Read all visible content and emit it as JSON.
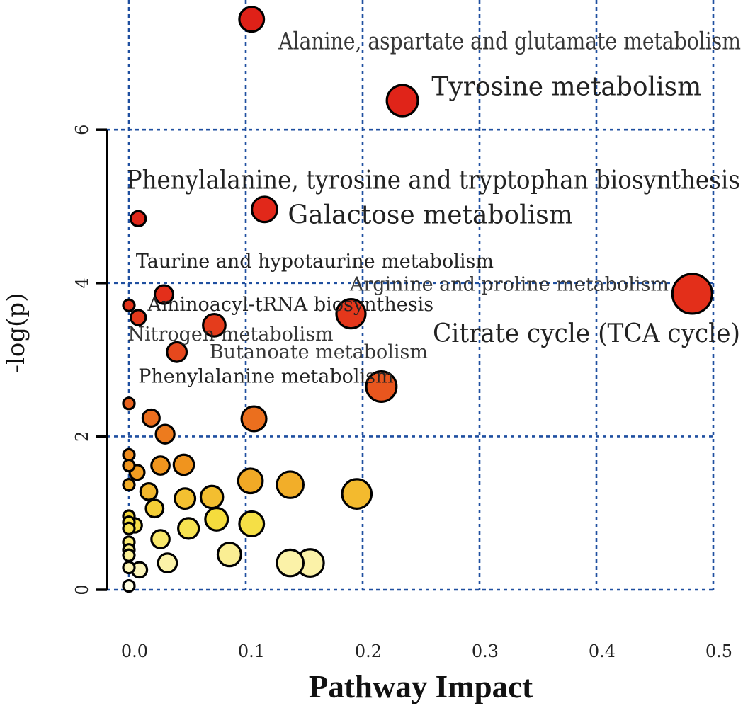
{
  "chart_data": {
    "type": "scatter",
    "title": "",
    "xlabel": "Pathway Impact",
    "ylabel": "-log(p)",
    "xlim": [
      0,
      0.5
    ],
    "ylim": [
      0,
      7.5
    ],
    "xticks": [
      0.0,
      0.1,
      0.2,
      0.3,
      0.4,
      0.5
    ],
    "xtick_labels": [
      "0.0",
      "0.1",
      "0.2",
      "0.3",
      "0.4",
      "0.5"
    ],
    "yticks": [
      0,
      2,
      4,
      6
    ],
    "ytick_labels": [
      "0",
      "2",
      "4",
      "6"
    ],
    "grid": true,
    "grid_style": "dotted-blue",
    "color_scale": "-log(p): white (low) to yellow to orange to red (high)",
    "points": [
      {
        "x": 0.105,
        "y": 7.44,
        "size": 0.105,
        "label": "Alanine, aspartate and glutamate metabolism"
      },
      {
        "x": 0.234,
        "y": 6.38,
        "size": 0.234,
        "label": "Tyrosine metabolism"
      },
      {
        "x": 0.116,
        "y": 4.96,
        "size": 0.116,
        "label": "Galactose metabolism"
      },
      {
        "x": 0.008,
        "y": 4.84,
        "size": 0.008,
        "label": "Phenylalanine, tyrosine and tryptophan biosynthesis"
      },
      {
        "x": 0.03,
        "y": 3.85,
        "size": 0.03,
        "label": "Taurine and hypotaurine metabolism"
      },
      {
        "x": 0.482,
        "y": 3.86,
        "size": 0.482,
        "label": "Citrate cycle (TCA cycle)"
      },
      {
        "x": 0.19,
        "y": 3.6,
        "size": 0.19,
        "label": "Arginine and proline metabolism"
      },
      {
        "x": 0.0,
        "y": 3.71,
        "size": 0.0,
        "label": ""
      },
      {
        "x": 0.008,
        "y": 3.55,
        "size": 0.008,
        "label": "Aminoacyl-tRNA biosynthesis"
      },
      {
        "x": 0.073,
        "y": 3.45,
        "size": 0.073,
        "label": "Nitrogen metabolism"
      },
      {
        "x": 0.041,
        "y": 3.1,
        "size": 0.041,
        "label": "Butanoate metabolism"
      },
      {
        "x": 0.216,
        "y": 2.65,
        "size": 0.216,
        "label": "Phenylalanine metabolism"
      },
      {
        "x": 0.0,
        "y": 2.43,
        "size": 0.0,
        "label": ""
      },
      {
        "x": 0.019,
        "y": 2.24,
        "size": 0.019,
        "label": ""
      },
      {
        "x": 0.107,
        "y": 2.23,
        "size": 0.107,
        "label": ""
      },
      {
        "x": 0.031,
        "y": 2.03,
        "size": 0.031,
        "label": ""
      },
      {
        "x": 0.0,
        "y": 1.76,
        "size": 0.0,
        "label": ""
      },
      {
        "x": 0.0,
        "y": 1.62,
        "size": 0.0,
        "label": ""
      },
      {
        "x": 0.027,
        "y": 1.62,
        "size": 0.027,
        "label": ""
      },
      {
        "x": 0.047,
        "y": 1.63,
        "size": 0.047,
        "label": ""
      },
      {
        "x": 0.007,
        "y": 1.53,
        "size": 0.007,
        "label": ""
      },
      {
        "x": 0.0,
        "y": 1.37,
        "size": 0.0,
        "label": ""
      },
      {
        "x": 0.104,
        "y": 1.42,
        "size": 0.104,
        "label": ""
      },
      {
        "x": 0.138,
        "y": 1.37,
        "size": 0.138,
        "label": ""
      },
      {
        "x": 0.017,
        "y": 1.28,
        "size": 0.017,
        "label": ""
      },
      {
        "x": 0.195,
        "y": 1.25,
        "size": 0.195,
        "label": ""
      },
      {
        "x": 0.071,
        "y": 1.21,
        "size": 0.071,
        "label": ""
      },
      {
        "x": 0.048,
        "y": 1.19,
        "size": 0.048,
        "label": ""
      },
      {
        "x": 0.022,
        "y": 1.06,
        "size": 0.022,
        "label": ""
      },
      {
        "x": 0.0,
        "y": 0.96,
        "size": 0.0,
        "label": ""
      },
      {
        "x": 0.075,
        "y": 0.92,
        "size": 0.075,
        "label": ""
      },
      {
        "x": 0.105,
        "y": 0.86,
        "size": 0.105,
        "label": ""
      },
      {
        "x": 0.0,
        "y": 0.88,
        "size": 0.0,
        "label": ""
      },
      {
        "x": 0.005,
        "y": 0.84,
        "size": 0.005,
        "label": ""
      },
      {
        "x": 0.0,
        "y": 0.8,
        "size": 0.0,
        "label": ""
      },
      {
        "x": 0.051,
        "y": 0.8,
        "size": 0.051,
        "label": ""
      },
      {
        "x": 0.027,
        "y": 0.66,
        "size": 0.027,
        "label": ""
      },
      {
        "x": 0.0,
        "y": 0.62,
        "size": 0.0,
        "label": ""
      },
      {
        "x": 0.0,
        "y": 0.52,
        "size": 0.0,
        "label": ""
      },
      {
        "x": 0.0,
        "y": 0.45,
        "size": 0.0,
        "label": ""
      },
      {
        "x": 0.086,
        "y": 0.46,
        "size": 0.086,
        "label": ""
      },
      {
        "x": 0.033,
        "y": 0.35,
        "size": 0.033,
        "label": ""
      },
      {
        "x": 0.138,
        "y": 0.35,
        "size": 0.138,
        "label": ""
      },
      {
        "x": 0.155,
        "y": 0.35,
        "size": 0.155,
        "label": ""
      },
      {
        "x": 0.0,
        "y": 0.29,
        "size": 0.0,
        "label": ""
      },
      {
        "x": 0.009,
        "y": 0.26,
        "size": 0.009,
        "label": ""
      },
      {
        "x": 0.0,
        "y": 0.05,
        "size": 0.0,
        "label": ""
      }
    ],
    "annotations": [
      {
        "text": "Alanine, aspartate and glutamate metabolism",
        "x": 0.128,
        "y": 7.05,
        "size": "medium",
        "color": "#555555",
        "weight": "light"
      },
      {
        "text": "Tyrosine metabolism",
        "x": 0.259,
        "y": 6.45,
        "size": "large",
        "color": "#222222",
        "weight": "normal"
      },
      {
        "text": "Phenylalanine, tyrosine and tryptophan biosynthesis",
        "x": -0.002,
        "y": 5.23,
        "size": "large",
        "color": "#222222",
        "weight": "normal"
      },
      {
        "text": "Galactose metabolism",
        "x": 0.136,
        "y": 4.78,
        "size": "large",
        "color": "#222222",
        "weight": "normal"
      },
      {
        "text": "Taurine and hypotaurine metabolism",
        "x": 0.006,
        "y": 4.2,
        "size": "small",
        "color": "#222222",
        "weight": "normal"
      },
      {
        "text": "Arginine and proline metabolism",
        "x": 0.189,
        "y": 3.9,
        "size": "small",
        "color": "#555555",
        "weight": "light"
      },
      {
        "text": "Aminoacyl-tRNA biosynthesis",
        "x": 0.016,
        "y": 3.64,
        "size": "small",
        "color": "#222222",
        "weight": "normal"
      },
      {
        "text": "Nitrogen metabolism",
        "x": -0.001,
        "y": 3.25,
        "size": "small",
        "color": "#555555",
        "weight": "light"
      },
      {
        "text": "Butanoate metabolism",
        "x": 0.069,
        "y": 3.02,
        "size": "small",
        "color": "#555555",
        "weight": "light"
      },
      {
        "text": "Citrate cycle (TCA cycle)",
        "x": 0.26,
        "y": 3.23,
        "size": "large",
        "color": "#222222",
        "weight": "normal"
      },
      {
        "text": "Phenylalanine metabolism",
        "x": 0.008,
        "y": 2.7,
        "size": "small",
        "color": "#222222",
        "weight": "normal"
      }
    ]
  }
}
